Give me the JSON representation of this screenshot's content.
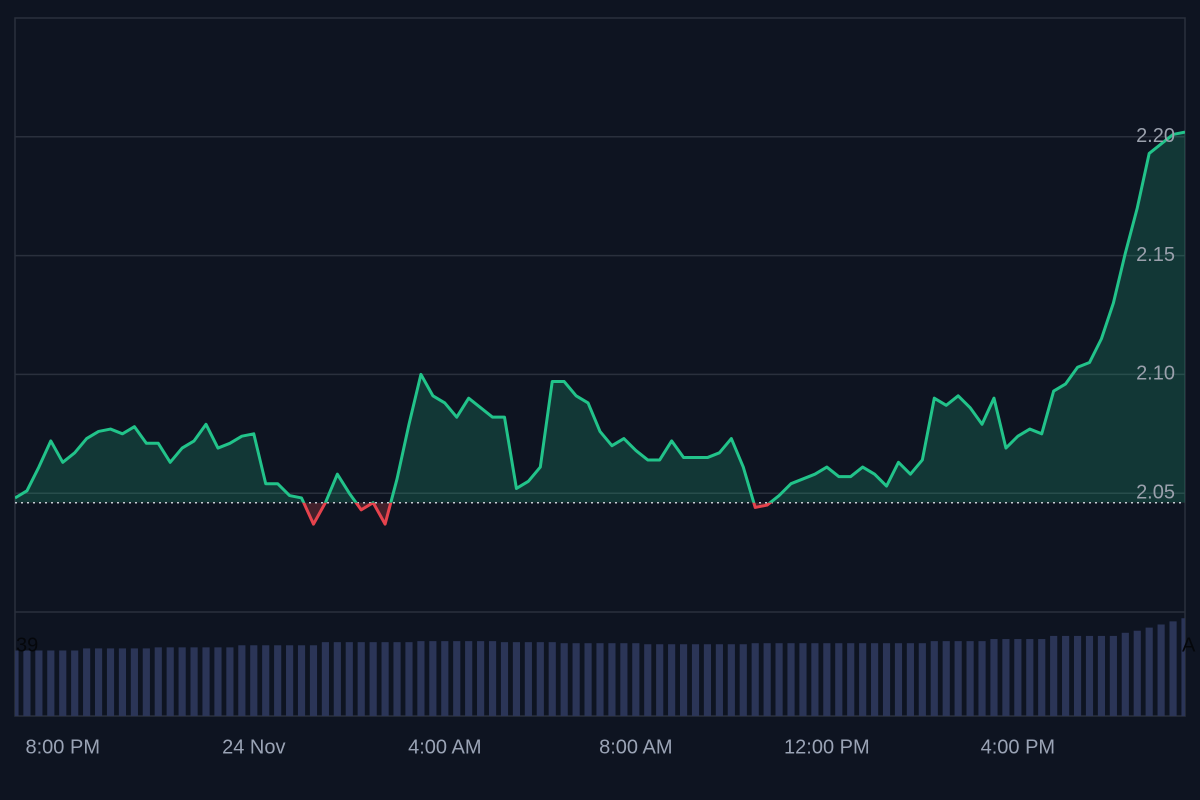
{
  "chart_data": {
    "type": "baseline_area",
    "x": [
      19,
      19.25,
      19.5,
      19.75,
      20,
      20.25,
      20.5,
      20.75,
      21,
      21.25,
      21.5,
      21.75,
      22,
      22.25,
      22.5,
      22.75,
      23,
      23.25,
      23.5,
      23.75,
      24,
      24.25,
      24.5,
      24.75,
      25,
      25.25,
      25.5,
      25.75,
      26,
      26.25,
      26.5,
      26.75,
      27,
      27.25,
      27.5,
      27.75,
      28,
      28.25,
      28.5,
      28.75,
      29,
      29.25,
      29.5,
      29.75,
      30,
      30.25,
      30.5,
      30.75,
      31,
      31.25,
      31.5,
      31.75,
      32,
      32.25,
      32.5,
      32.75,
      33,
      33.25,
      33.5,
      33.75,
      34,
      34.25,
      34.5,
      34.75,
      35,
      35.25,
      35.5,
      35.75,
      36,
      36.25,
      36.5,
      36.75,
      37,
      37.25,
      37.5,
      37.75,
      38,
      38.25,
      38.5,
      38.75,
      39,
      39.25,
      39.5,
      39.75,
      40,
      40.25,
      40.5,
      40.75,
      41,
      41.25,
      41.5,
      41.75,
      42,
      42.25,
      42.5,
      42.75,
      43,
      43.25,
      43.5
    ],
    "values": [
      2.048,
      2.051,
      2.061,
      2.072,
      2.063,
      2.067,
      2.073,
      2.076,
      2.077,
      2.075,
      2.078,
      2.071,
      2.071,
      2.063,
      2.069,
      2.072,
      2.079,
      2.069,
      2.071,
      2.074,
      2.075,
      2.054,
      2.054,
      2.049,
      2.048,
      2.037,
      2.046,
      2.058,
      2.05,
      2.043,
      2.046,
      2.037,
      2.056,
      2.079,
      2.1,
      2.091,
      2.088,
      2.082,
      2.09,
      2.086,
      2.082,
      2.082,
      2.052,
      2.055,
      2.061,
      2.097,
      2.097,
      2.091,
      2.088,
      2.076,
      2.07,
      2.073,
      2.068,
      2.064,
      2.064,
      2.072,
      2.065,
      2.065,
      2.065,
      2.067,
      2.073,
      2.061,
      2.044,
      2.045,
      2.049,
      2.054,
      2.056,
      2.058,
      2.061,
      2.057,
      2.057,
      2.061,
      2.058,
      2.053,
      2.063,
      2.058,
      2.064,
      2.09,
      2.087,
      2.091,
      2.086,
      2.079,
      2.09,
      2.069,
      2.074,
      2.077,
      2.075,
      2.093,
      2.096,
      2.103,
      2.105,
      2.115,
      2.13,
      2.151,
      2.17,
      2.193,
      2.197,
      2.201,
      2.202
    ],
    "baseline": 2.046,
    "color_above": "#22c38a",
    "color_below": "#e5434d",
    "ylim": [
      2.0,
      2.25
    ],
    "yticks": [
      2.05,
      {
        "value": 2.1,
        "label": "2.10"
      },
      2.15,
      {
        "value": 2.2,
        "label": "2.20"
      }
    ],
    "xlim": [
      19,
      43.5
    ],
    "xticks": [
      {
        "value": 20,
        "label": "8:00 PM"
      },
      {
        "value": 24,
        "label": "24 Nov"
      },
      {
        "value": 28,
        "label": "4:00 AM"
      },
      {
        "value": 32,
        "label": "8:00 AM"
      },
      {
        "value": 36,
        "label": "12:00 PM"
      },
      {
        "value": 40,
        "label": "4:00 PM"
      }
    ],
    "grid": true,
    "volume": {
      "values": [
        63,
        63,
        63,
        63,
        63,
        63,
        65,
        65,
        65,
        65,
        65,
        65,
        66,
        66,
        66,
        66,
        66,
        66,
        66,
        68,
        68,
        68,
        68,
        68,
        68,
        68,
        71,
        71,
        71,
        71,
        71,
        71,
        71,
        71,
        72,
        72,
        72,
        72,
        72,
        72,
        72,
        71,
        71,
        71,
        71,
        71,
        70,
        70,
        70,
        70,
        70,
        70,
        70,
        69,
        69,
        69,
        69,
        69,
        69,
        69,
        69,
        69,
        70,
        70,
        70,
        70,
        70,
        70,
        70,
        70,
        70,
        70,
        70,
        70,
        70,
        70,
        70,
        72,
        72,
        72,
        72,
        72,
        74,
        74,
        74,
        74,
        74,
        77,
        77,
        77,
        77,
        77,
        77,
        80,
        82,
        85,
        88,
        91,
        94
      ],
      "ylim": [
        0,
        100
      ],
      "color": "#2b3557"
    },
    "corner_labels": [
      "39",
      "A"
    ]
  }
}
